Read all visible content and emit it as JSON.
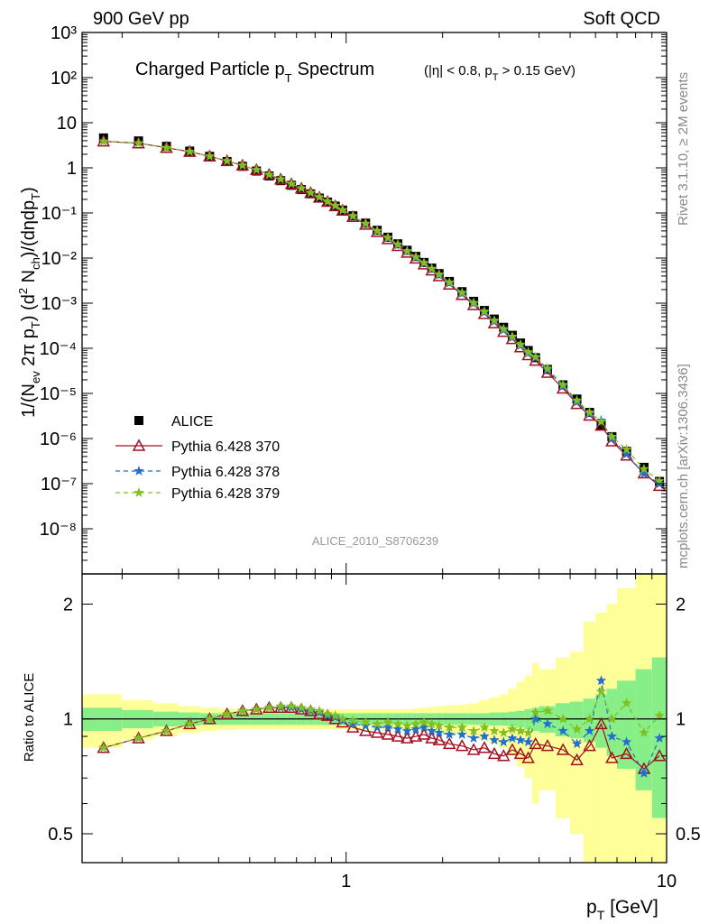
{
  "header": {
    "left": "900 GeV pp",
    "right": "Soft QCD"
  },
  "side_labels": {
    "rivet": "Rivet 3.1.10, ≥ 2M events",
    "mcplots": "mcplots.cern.ch [arXiv:1306.3436]"
  },
  "chart_data": {
    "type": "scatter",
    "title": "Charged Particle pT Spectrum",
    "title_main": "Charged Particle p",
    "title_sub": "T",
    "title_tail": "Spectrum",
    "title_cuts": "(|η| < 0.8, p",
    "title_cuts_sub": "T",
    "title_cuts_tail": " > 0.15 GeV)",
    "analysis_id": "ALICE_2010_S8706239",
    "xlabel": "p",
    "xlabel_sub": "T",
    "xlabel_unit": " [GeV]",
    "xscale": "log",
    "xlim": [
      0.15,
      10
    ],
    "x_tick_labels": [
      "1",
      "10"
    ],
    "main_panel": {
      "ylabel": "1/(N_ev 2π p_T) (d² N_ch)/(dηdp_T)",
      "yscale": "log",
      "ylim": [
        1e-09,
        1000
      ],
      "y_tick_labels": [
        "10⁻⁸",
        "10⁻⁷",
        "10⁻⁶",
        "10⁻⁵",
        "10⁻⁴",
        "10⁻³",
        "10⁻²",
        "10⁻¹",
        "1",
        "10",
        "10²",
        "10³"
      ]
    },
    "ratio_panel": {
      "ylabel": "Ratio to ALICE",
      "yscale": "log",
      "ylim": [
        0.42,
        2.4
      ],
      "y_tick_labels": [
        "0.5",
        "1",
        "2"
      ]
    },
    "legend_position": "bottom-left",
    "x": [
      0.175,
      0.225,
      0.275,
      0.325,
      0.375,
      0.425,
      0.475,
      0.525,
      0.575,
      0.625,
      0.675,
      0.725,
      0.775,
      0.825,
      0.875,
      0.925,
      0.975,
      1.05,
      1.15,
      1.25,
      1.35,
      1.45,
      1.55,
      1.65,
      1.75,
      1.85,
      1.95,
      2.1,
      2.3,
      2.5,
      2.7,
      2.9,
      3.1,
      3.3,
      3.5,
      3.7,
      3.9,
      4.25,
      4.75,
      5.25,
      5.75,
      6.25,
      6.75,
      7.5,
      8.5,
      9.5
    ],
    "series": [
      {
        "name": "ALICE",
        "color": "#000000",
        "marker": "square",
        "values": [
          4.6,
          3.95,
          3.0,
          2.35,
          1.8,
          1.38,
          1.08,
          0.85,
          0.66,
          0.52,
          0.41,
          0.33,
          0.265,
          0.214,
          0.174,
          0.142,
          0.116,
          0.0865,
          0.0595,
          0.0413,
          0.029,
          0.0207,
          0.0149,
          0.0109,
          0.008,
          0.006,
          0.00453,
          0.00303,
          0.0018,
          0.0011,
          0.00069,
          0.000445,
          0.000292,
          0.000194,
          0.000131,
          8.95e-05,
          6.2e-05,
          3.4e-05,
          1.55e-05,
          7.5e-06,
          3.8e-06,
          2e-06,
          1.1e-06,
          5.2e-07,
          2.3e-07,
          1.12e-07
        ]
      },
      {
        "name": "Pythia 6.428 370",
        "color": "#a01020",
        "marker": "triangle",
        "dash": "",
        "ratio": [
          0.84,
          0.89,
          0.93,
          0.97,
          1.0,
          1.03,
          1.05,
          1.06,
          1.07,
          1.07,
          1.07,
          1.06,
          1.05,
          1.03,
          1.02,
          1.0,
          0.98,
          0.95,
          0.93,
          0.92,
          0.91,
          0.9,
          0.89,
          0.9,
          0.91,
          0.89,
          0.88,
          0.86,
          0.85,
          0.83,
          0.84,
          0.81,
          0.8,
          0.83,
          0.81,
          0.79,
          0.86,
          0.85,
          0.83,
          0.78,
          0.85,
          0.97,
          0.79,
          0.81,
          0.74,
          0.8
        ]
      },
      {
        "name": "Pythia 6.428 378",
        "color": "#2070d0",
        "marker": "star",
        "dash": "5,4",
        "ratio": [
          0.84,
          0.89,
          0.93,
          0.97,
          1.0,
          1.03,
          1.05,
          1.06,
          1.07,
          1.07,
          1.07,
          1.06,
          1.05,
          1.04,
          1.02,
          1.01,
          0.99,
          0.97,
          0.96,
          0.95,
          0.95,
          0.94,
          0.93,
          0.94,
          0.95,
          0.93,
          0.92,
          0.91,
          0.91,
          0.89,
          0.9,
          0.88,
          0.87,
          0.89,
          0.88,
          0.87,
          1.0,
          0.97,
          0.93,
          0.86,
          0.93,
          1.26,
          0.9,
          0.87,
          0.72,
          0.89
        ]
      },
      {
        "name": "Pythia 6.428 379",
        "color": "#80c020",
        "marker": "star",
        "dash": "5,4",
        "ratio": [
          0.84,
          0.89,
          0.93,
          0.97,
          1.0,
          1.03,
          1.05,
          1.06,
          1.07,
          1.08,
          1.08,
          1.07,
          1.06,
          1.05,
          1.03,
          1.02,
          1.0,
          0.99,
          0.98,
          0.97,
          0.98,
          0.97,
          0.96,
          0.97,
          0.98,
          0.97,
          0.96,
          0.95,
          0.95,
          0.93,
          0.95,
          0.93,
          0.92,
          0.94,
          0.93,
          0.92,
          1.04,
          1.05,
          1.0,
          0.94,
          1.0,
          1.18,
          1.0,
          1.1,
          0.92,
          1.02
        ]
      }
    ],
    "band_colors": {
      "inner": "#88ee88",
      "outer": "#ffff99"
    },
    "band_edges": [
      0.15,
      0.2,
      0.25,
      0.3,
      0.35,
      0.4,
      0.45,
      0.5,
      0.55,
      0.6,
      0.65,
      0.7,
      0.75,
      0.8,
      0.85,
      0.9,
      0.95,
      1.0,
      1.1,
      1.2,
      1.3,
      1.4,
      1.5,
      1.6,
      1.7,
      1.8,
      1.9,
      2.0,
      2.2,
      2.4,
      2.6,
      2.8,
      3.0,
      3.2,
      3.4,
      3.6,
      3.8,
      4.0,
      4.5,
      5.0,
      5.5,
      6.0,
      6.5,
      7.0,
      8.0,
      9.0,
      10.0
    ],
    "band_inner": [
      0.07,
      0.055,
      0.045,
      0.04,
      0.035,
      0.035,
      0.035,
      0.035,
      0.035,
      0.035,
      0.035,
      0.035,
      0.035,
      0.035,
      0.035,
      0.035,
      0.035,
      0.035,
      0.035,
      0.035,
      0.035,
      0.035,
      0.035,
      0.035,
      0.035,
      0.035,
      0.035,
      0.035,
      0.035,
      0.035,
      0.035,
      0.04,
      0.04,
      0.045,
      0.05,
      0.06,
      0.07,
      0.08,
      0.1,
      0.11,
      0.13,
      0.16,
      0.2,
      0.26,
      0.35,
      0.45
    ],
    "band_outer": [
      0.16,
      0.12,
      0.1,
      0.08,
      0.07,
      0.065,
      0.06,
      0.06,
      0.06,
      0.06,
      0.06,
      0.06,
      0.06,
      0.06,
      0.06,
      0.06,
      0.06,
      0.06,
      0.06,
      0.06,
      0.06,
      0.06,
      0.06,
      0.065,
      0.07,
      0.075,
      0.08,
      0.085,
      0.09,
      0.1,
      0.12,
      0.14,
      0.16,
      0.2,
      0.25,
      0.3,
      0.4,
      0.35,
      0.45,
      0.5,
      0.8,
      0.9,
      1.0,
      1.2,
      1.6,
      2.0
    ]
  }
}
